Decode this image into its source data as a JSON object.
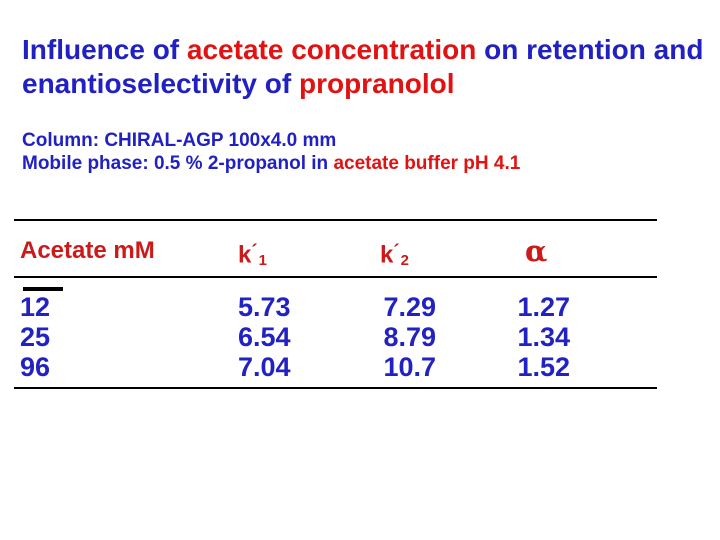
{
  "colors": {
    "background": "#ffffff",
    "title_blue": "#2121c3",
    "title_red": "#e01212",
    "table_header_red": "#cc1a1a",
    "table_data_blue": "#2222c2",
    "rule_black": "#000000"
  },
  "title": {
    "line1": {
      "seg1": {
        "text": "Influence of ",
        "color": "blue"
      },
      "seg2": {
        "text": "acetate concentration",
        "color": "red"
      },
      "seg3": {
        "text": " on retention and",
        "color": "blue"
      }
    },
    "line2": {
      "seg1": {
        "text": "enantioselectivity of ",
        "color": "blue"
      },
      "seg2": {
        "text": "propranolol",
        "color": "red"
      }
    }
  },
  "subtitle": {
    "line1": {
      "seg1": {
        "text": "Column: CHIRAL-AGP 100x4.0 mm",
        "color": "blue"
      }
    },
    "line2": {
      "seg1": {
        "text": "Mobile phase: 0.5 % 2-propanol in ",
        "color": "blue"
      },
      "seg2": {
        "text": "acetate buffer pH 4.1",
        "color": "red"
      }
    }
  },
  "table": {
    "headers": {
      "col1": {
        "label": "Acetate mM"
      },
      "col2": {
        "base": "k",
        "prime": "´",
        "sub": "1"
      },
      "col3": {
        "base": "k",
        "prime": "´",
        "sub": "2"
      },
      "col4": {
        "label": "α"
      }
    },
    "rows": [
      {
        "acetate": "12",
        "k1": "5.73",
        "k2": "7.29",
        "alpha": "1.27"
      },
      {
        "acetate": "25",
        "k1": "6.54",
        "k2": "8.79",
        "alpha": "1.34"
      },
      {
        "acetate": "96",
        "k1": "7.04",
        "k2": "10.7",
        "alpha": "1.52"
      }
    ]
  },
  "chart_data": {
    "type": "table",
    "title": "Influence of acetate concentration on retention and enantioselectivity of propranolol",
    "columns": [
      "Acetate mM",
      "k′1",
      "k′2",
      "α"
    ],
    "rows": [
      [
        12,
        5.73,
        7.29,
        1.27
      ],
      [
        25,
        6.54,
        8.79,
        1.34
      ],
      [
        96,
        7.04,
        10.7,
        1.52
      ]
    ]
  }
}
